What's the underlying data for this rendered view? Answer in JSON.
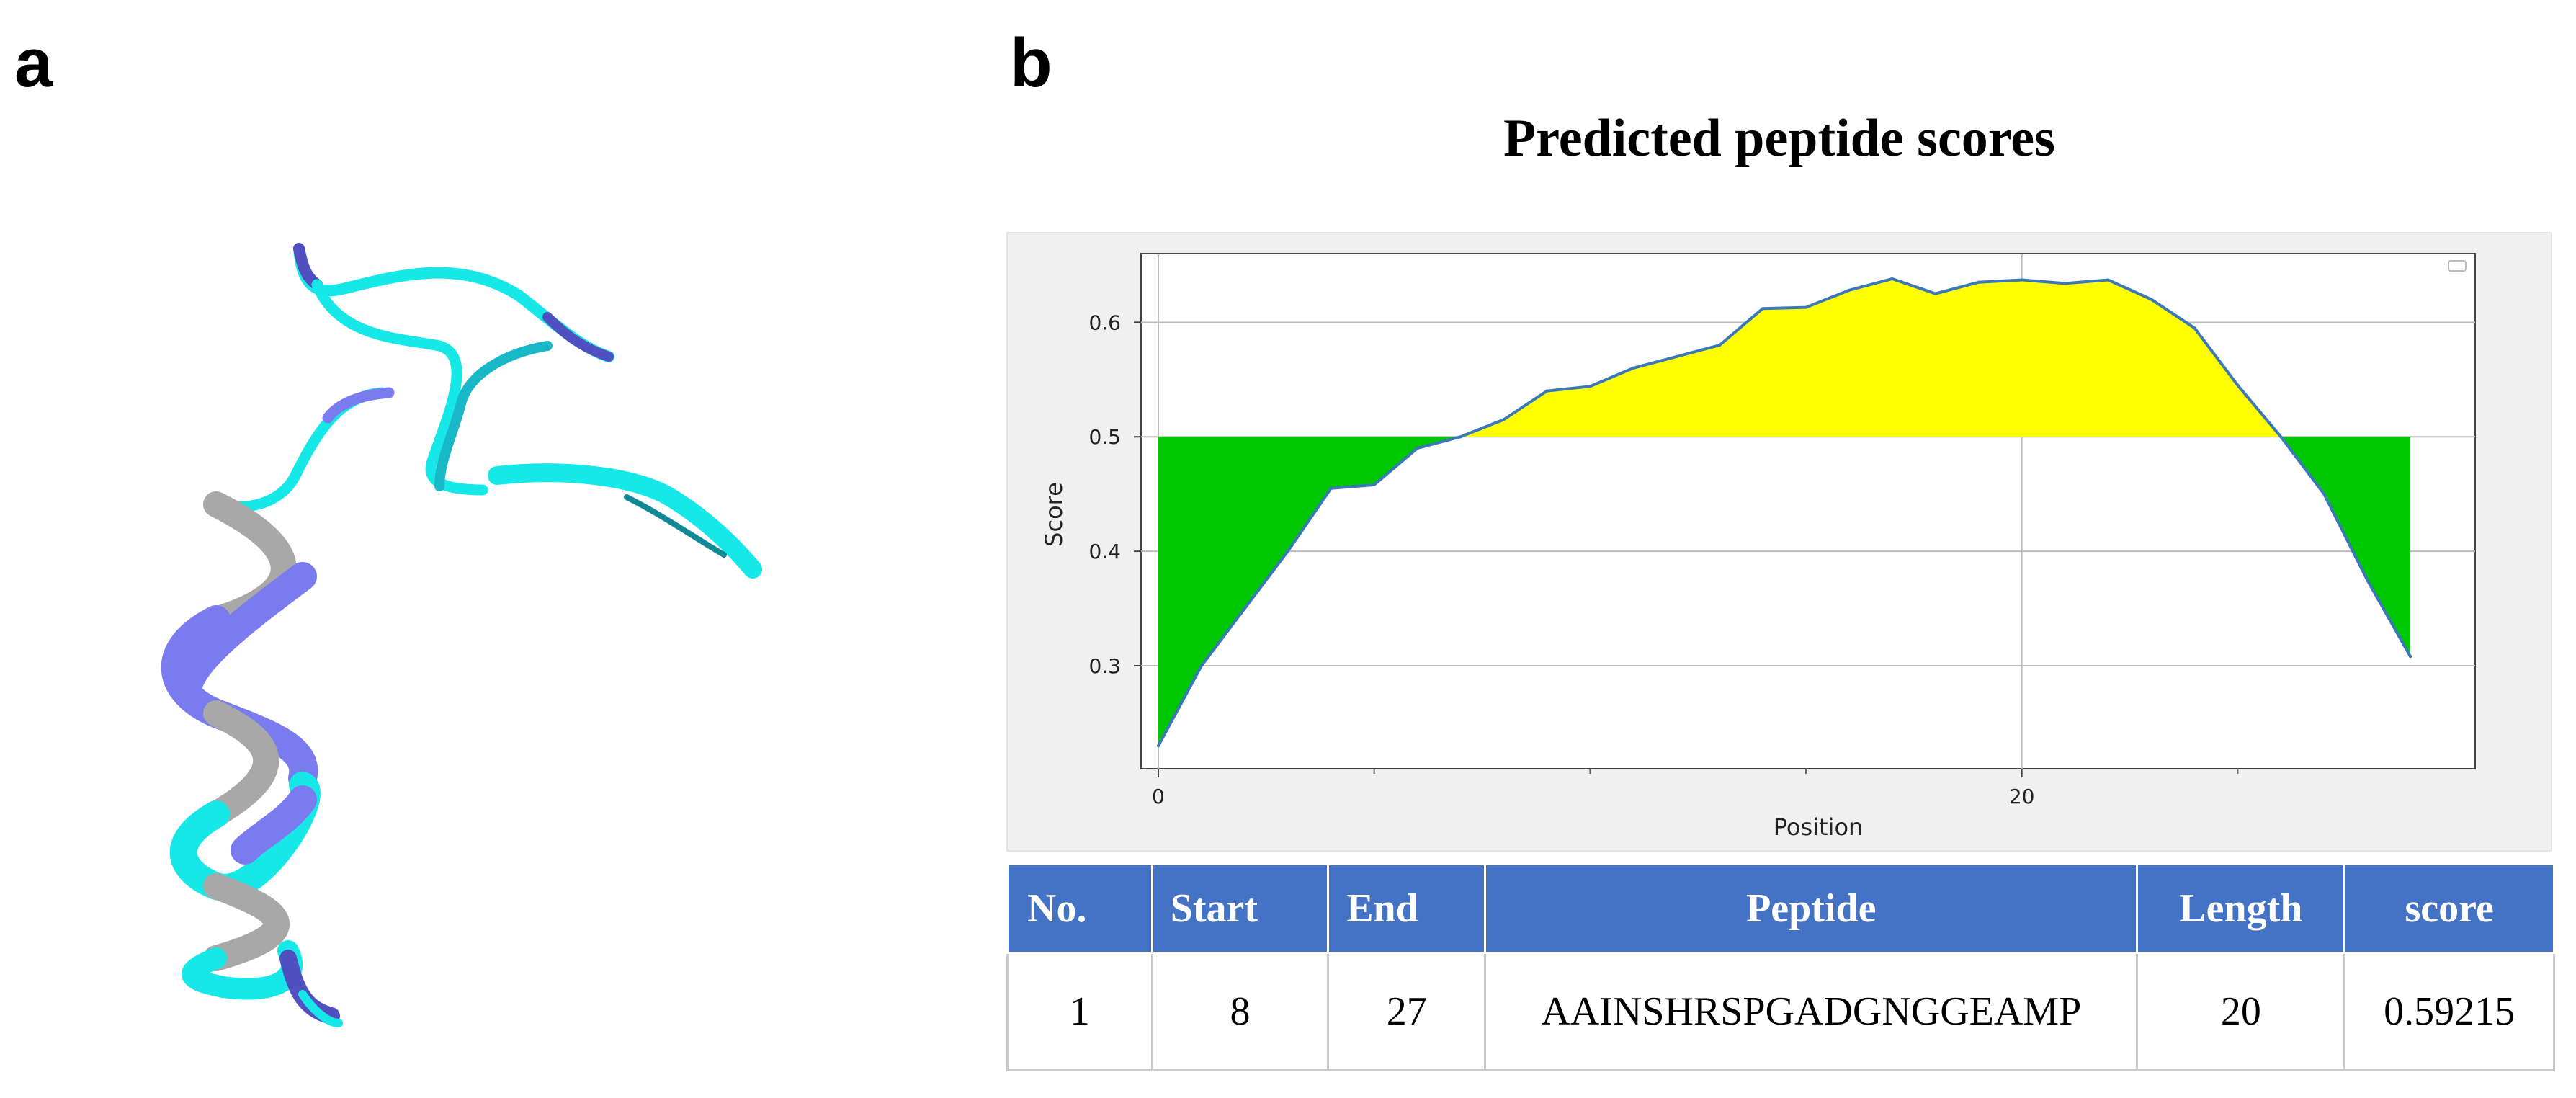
{
  "panels": {
    "a": "a",
    "b": "b"
  },
  "colors": {
    "area_above": "#ffff00",
    "area_below": "#00c800",
    "line": "#3a78b8",
    "table_header": "#4472c4",
    "helix_blue": "#7b7bf0",
    "helix_cyan": "#16e8e8",
    "helix_grey": "#a8a8a8"
  },
  "chart_data": {
    "type": "area",
    "title": "Predicted peptide scores",
    "xlabel": "Position",
    "ylabel": "Score",
    "threshold": 0.5,
    "xlim": [
      -0.4,
      30.5
    ],
    "ylim": [
      0.21,
      0.66
    ],
    "xticks": [
      0,
      20
    ],
    "yticks": [
      0.3,
      0.4,
      0.5,
      0.6
    ],
    "minor_xticks": [
      5,
      10,
      15,
      25
    ],
    "x": [
      0,
      1,
      2,
      3,
      4,
      5,
      6,
      7,
      8,
      9,
      10,
      11,
      12,
      13,
      14,
      15,
      16,
      17,
      18,
      19,
      20,
      21,
      22,
      23,
      24,
      25,
      26,
      27,
      28,
      29
    ],
    "values": [
      0.23,
      0.3,
      0.35,
      0.4,
      0.455,
      0.458,
      0.49,
      0.5,
      0.515,
      0.54,
      0.544,
      0.56,
      0.57,
      0.58,
      0.612,
      0.613,
      0.628,
      0.638,
      0.625,
      0.635,
      0.637,
      0.634,
      0.637,
      0.62,
      0.595,
      0.545,
      0.5,
      0.45,
      0.375,
      0.308
    ],
    "legend": "top-right"
  },
  "table": {
    "headers": [
      "No.",
      "Start",
      "End",
      "Peptide",
      "Length",
      "score"
    ],
    "rows": [
      [
        "1",
        "8",
        "27",
        "AAINSHRSPGADGNGGEAMP",
        "20",
        "0.59215"
      ]
    ]
  }
}
